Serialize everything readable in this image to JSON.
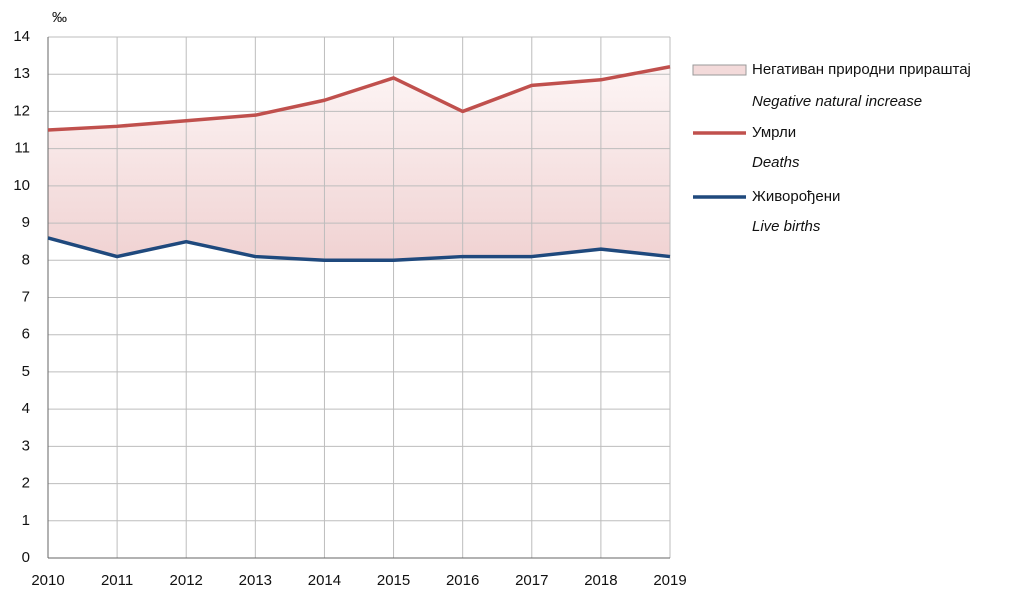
{
  "chart_data": {
    "type": "line",
    "unit": "‰",
    "x": [
      2010,
      2011,
      2012,
      2013,
      2014,
      2015,
      2016,
      2017,
      2018,
      2019
    ],
    "xlim": [
      2010,
      2019
    ],
    "xticks": [
      2010,
      2011,
      2012,
      2013,
      2014,
      2015,
      2016,
      2017,
      2018,
      2019
    ],
    "ylim": [
      0,
      14
    ],
    "yticks": [
      0,
      1,
      2,
      3,
      4,
      5,
      6,
      7,
      8,
      9,
      10,
      11,
      12,
      13,
      14
    ],
    "grid": true,
    "legend": "right",
    "area": {
      "name": "Негативан природни прираштај",
      "name_en": "Negative natural increase",
      "color": "#f3dada"
    },
    "series": [
      {
        "name": "Умрли",
        "name_en": "Deaths",
        "color": "#c0504d",
        "values": [
          11.5,
          11.6,
          11.75,
          11.9,
          12.3,
          12.9,
          12.0,
          12.7,
          12.85,
          13.2
        ]
      },
      {
        "name": "Живорођени",
        "name_en": "Live births",
        "color": "#1f497d",
        "values": [
          8.6,
          8.1,
          8.5,
          8.1,
          8.0,
          8.0,
          8.1,
          8.1,
          8.3,
          8.1
        ]
      }
    ]
  }
}
